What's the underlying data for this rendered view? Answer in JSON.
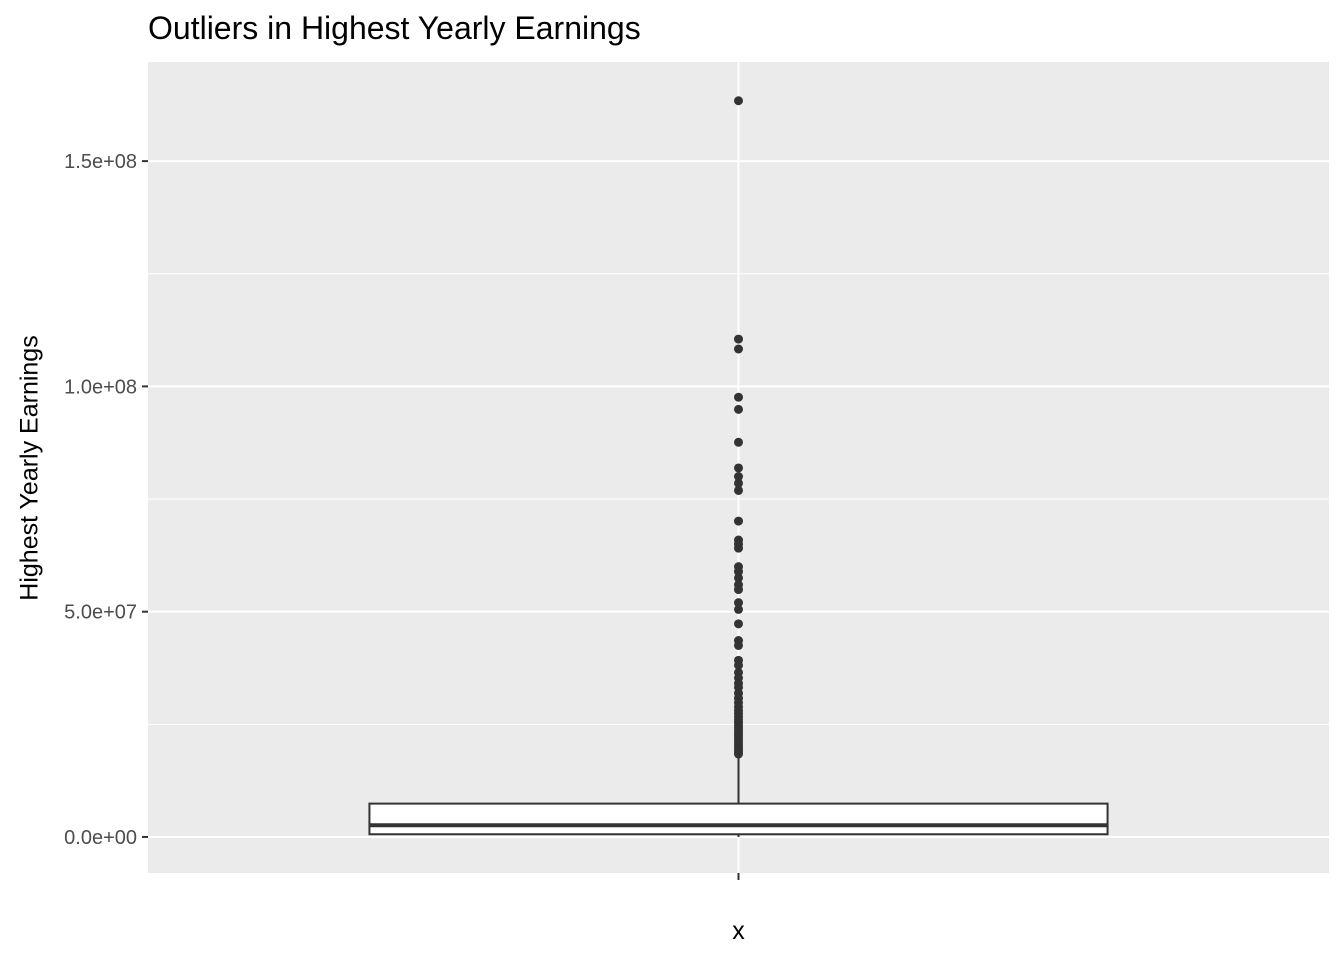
{
  "chart_data": {
    "type": "box",
    "title": "Outliers in Highest Yearly Earnings",
    "xlabel": "",
    "ylabel": "Highest Yearly Earnings",
    "categories": [
      "x"
    ],
    "ylim": [
      -8000000,
      172000000
    ],
    "y_ticks": [
      0,
      50000000,
      100000000,
      150000000
    ],
    "y_tick_labels": [
      "0.0e+00",
      "5.0e+07",
      "1.0e+08",
      "1.5e+08"
    ],
    "grid": true,
    "box": {
      "category": "x",
      "whisker_low": 0,
      "q1": 600000,
      "median": 2600000,
      "q3": 7400000,
      "whisker_high": 17500000,
      "outliers": [
        163400000,
        110500000,
        108300000,
        97600000,
        94900000,
        87600000,
        81900000,
        80000000,
        78500000,
        76900000,
        70100000,
        65900000,
        65000000,
        64100000,
        60000000,
        58900000,
        57500000,
        56000000,
        54900000,
        52000000,
        50500000,
        47300000,
        43600000,
        42500000,
        39200000,
        38100000,
        36500000,
        35300000,
        34100000,
        33200000,
        31900000,
        30800000,
        29800000,
        28900000,
        28100000,
        27400000,
        26700000,
        26000000,
        25400000,
        24800000,
        24200000,
        23600000,
        23000000,
        22400000,
        21800000,
        21200000,
        20600000,
        20000000,
        19400000,
        18900000,
        18400000
      ]
    },
    "colors": {
      "panel_bg": "#ebebeb",
      "gridline": "#ffffff",
      "box_stroke": "#333333",
      "point": "#333333",
      "tick": "#333333",
      "tick_label": "#4d4d4d"
    }
  }
}
